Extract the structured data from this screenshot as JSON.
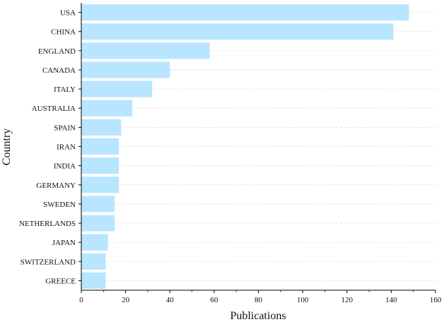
{
  "chart_data": {
    "type": "bar",
    "orientation": "horizontal",
    "categories": [
      "USA",
      "CHINA",
      "ENGLAND",
      "CANADA",
      "ITALY",
      "AUSTRALIA",
      "SPAIN",
      "IRAN",
      "INDIA",
      "GERMANY",
      "SWEDEN",
      "NETHERLANDS",
      "JAPAN",
      "SWITZERLAND",
      "GREECE"
    ],
    "values": [
      148,
      141,
      58,
      40,
      32,
      23,
      18,
      17,
      17,
      17,
      15,
      15,
      12,
      11,
      11
    ],
    "title": "",
    "xlabel": "Publications",
    "ylabel": "Country",
    "xlim": [
      0,
      160
    ],
    "xticks": [
      "0",
      "20",
      "40",
      "60",
      "80",
      "100",
      "120",
      "140",
      "160"
    ],
    "grid": true,
    "legend": "none",
    "colors": {
      "bar": "#b8e5ff",
      "grid": "#d9d9d9",
      "axis": "#000000",
      "text": "#111111"
    }
  }
}
